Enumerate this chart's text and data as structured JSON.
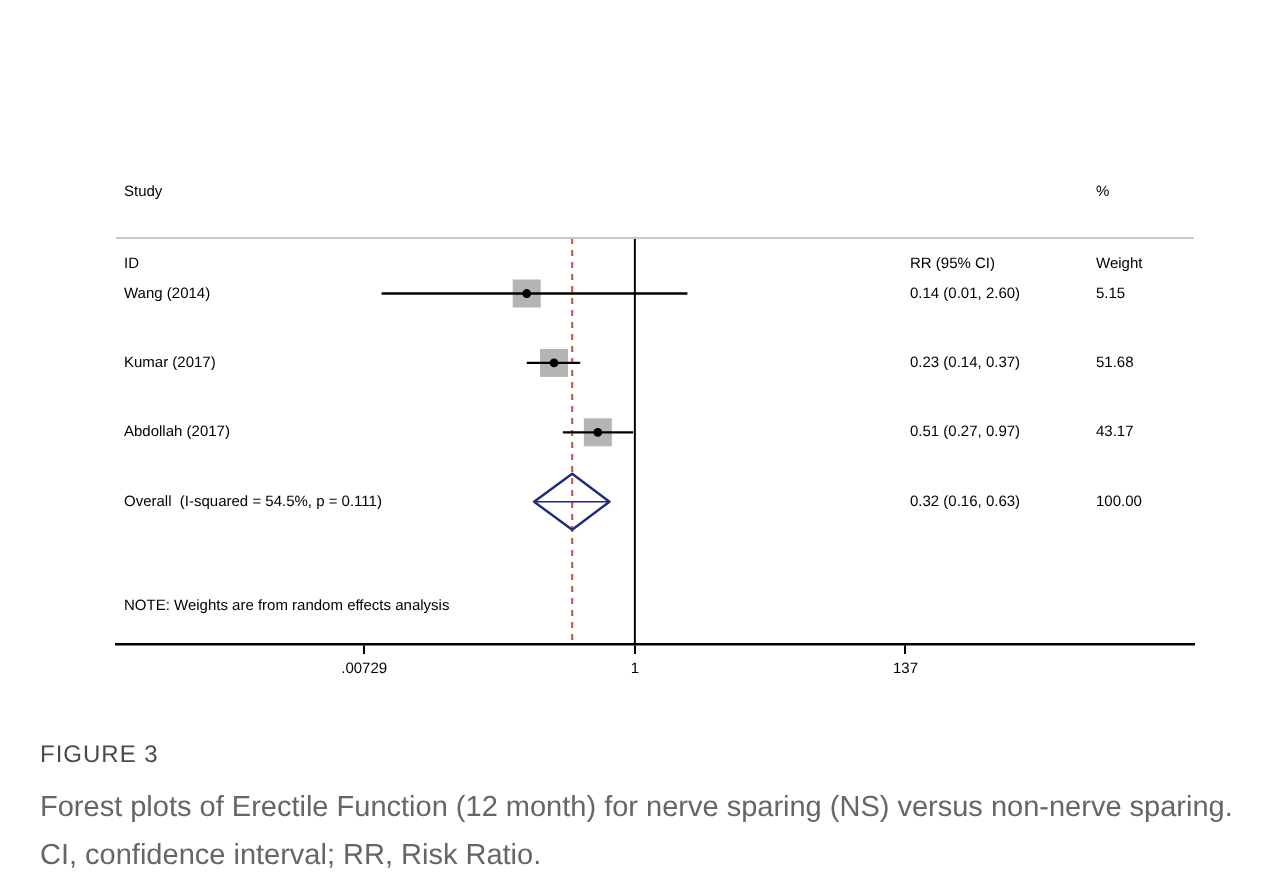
{
  "chart_data": {
    "type": "scatter",
    "orientation": "horizontal",
    "title": "FIGURE 3",
    "subtitle": "Forest plots of Erectile Function (12 month) for nerve sparing (NS) versus non-nerve sparing. CI, confidence interval; RR, Risk Ratio.",
    "categories": [
      "Wang (2014)",
      "Kumar (2017)",
      "Abdollah (2017)",
      "Overall  (I-squared = 54.5%, p = 0.111)"
    ],
    "series": [
      {
        "type": "scatter",
        "marker": "square",
        "color": "#b4b4b4",
        "values": [
          0.14,
          0.23,
          0.51,
          null
        ],
        "errors": [
          [
            0.01,
            2.6
          ],
          [
            0.14,
            0.37
          ],
          [
            0.27,
            0.97
          ],
          null
        ]
      },
      {
        "type": "scatter",
        "marker": "diamond",
        "color": "#1f2a7a",
        "values": [
          null,
          null,
          null,
          0.32
        ],
        "errors": [
          null,
          null,
          null,
          [
            0.16,
            0.63
          ]
        ]
      }
    ],
    "log": "x",
    "xlim": [
      8e-05,
      26000
    ],
    "xticks": [
      {
        "value": 0.00729,
        "label": ".00729"
      },
      1,
      137
    ],
    "tick_labels": "x",
    "grid": false,
    "legend": false,
    "ref_lines": [
      {
        "axis": "x",
        "value": 1,
        "color": "#000000",
        "line_style": "solid"
      },
      {
        "axis": "x",
        "value": 0.32,
        "color": "#c0504d",
        "line_style": "dashed"
      }
    ],
    "annotations": [
      "Study",
      "ID",
      "RR (95% CI)",
      "%",
      "Weight",
      "0.14 (0.01, 2.60)",
      "0.23 (0.14, 0.37)",
      "0.51 (0.27, 0.97)",
      "0.32 (0.16, 0.63)",
      "5.15",
      "51.68",
      "43.17",
      "100.00",
      "NOTE: Weights are from random effects analysis"
    ]
  }
}
